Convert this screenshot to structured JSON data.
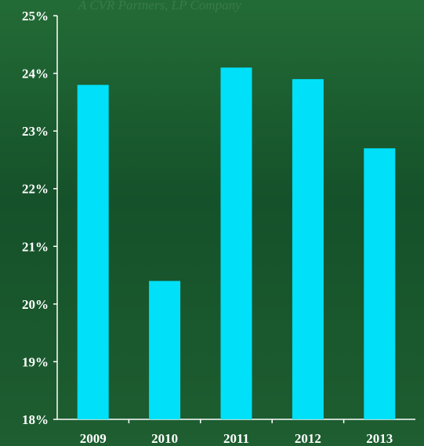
{
  "background_text": "A CVR Partners, LP Company",
  "chart_data": {
    "type": "bar",
    "categories": [
      "2009",
      "2010",
      "2011",
      "2012",
      "2013"
    ],
    "values": [
      23.8,
      20.4,
      24.1,
      23.9,
      22.7
    ],
    "ylim": [
      18,
      25
    ],
    "yticks": [
      18,
      19,
      20,
      21,
      22,
      23,
      24,
      25
    ],
    "ytick_labels": [
      "18%",
      "19%",
      "20%",
      "21%",
      "22%",
      "23%",
      "24%",
      "25%"
    ],
    "title": "",
    "xlabel": "",
    "ylabel": "",
    "grid": false,
    "bar_color": "#00e0f8",
    "axis_color": "#ffffff",
    "background_color": "#1b5a2e"
  }
}
